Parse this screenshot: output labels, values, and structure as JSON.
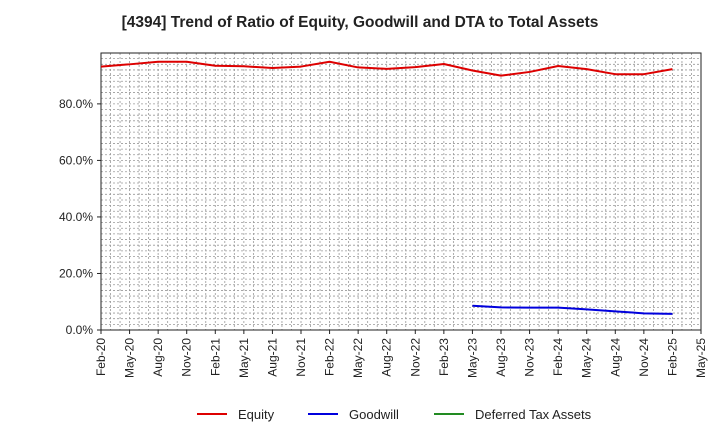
{
  "chart_data": {
    "type": "line",
    "title": "[4394]  Trend of Ratio of Equity, Goodwill and DTA to Total Assets",
    "xlabel": "",
    "ylabel": "",
    "ylim": [
      0,
      98
    ],
    "y_ticks": [
      0,
      20,
      40,
      60,
      80
    ],
    "y_tick_labels": [
      "0.0%",
      "20.0%",
      "40.0%",
      "60.0%",
      "80.0%"
    ],
    "x_tick_labels": [
      "Feb-20",
      "May-20",
      "Aug-20",
      "Nov-20",
      "Feb-21",
      "May-21",
      "Aug-21",
      "Nov-21",
      "Feb-22",
      "May-22",
      "Aug-22",
      "Nov-22",
      "Feb-23",
      "May-23",
      "Aug-23",
      "Nov-23",
      "Feb-24",
      "May-24",
      "Aug-24",
      "Nov-24",
      "Feb-25",
      "May-25"
    ],
    "grid": true,
    "legend_position": "bottom",
    "series": [
      {
        "name": "Equity",
        "color": "#dd0000",
        "values": [
          93.2,
          94.0,
          94.9,
          94.9,
          93.5,
          93.3,
          92.7,
          93.2,
          94.9,
          92.9,
          92.4,
          93.0,
          94.1,
          91.8,
          90.0,
          91.3,
          93.4,
          92.3,
          90.5,
          90.5,
          92.3,
          null
        ]
      },
      {
        "name": "Goodwill",
        "color": "#0000dd",
        "values": [
          null,
          null,
          null,
          null,
          null,
          null,
          null,
          null,
          null,
          null,
          null,
          null,
          null,
          8.6,
          8.0,
          7.9,
          7.9,
          7.3,
          6.6,
          5.9,
          5.7,
          null
        ]
      },
      {
        "name": "Deferred Tax Assets",
        "color": "#228b22",
        "values": [
          null,
          null,
          null,
          null,
          null,
          null,
          null,
          null,
          null,
          null,
          null,
          null,
          null,
          null,
          null,
          null,
          null,
          null,
          null,
          null,
          null,
          null
        ]
      }
    ]
  }
}
